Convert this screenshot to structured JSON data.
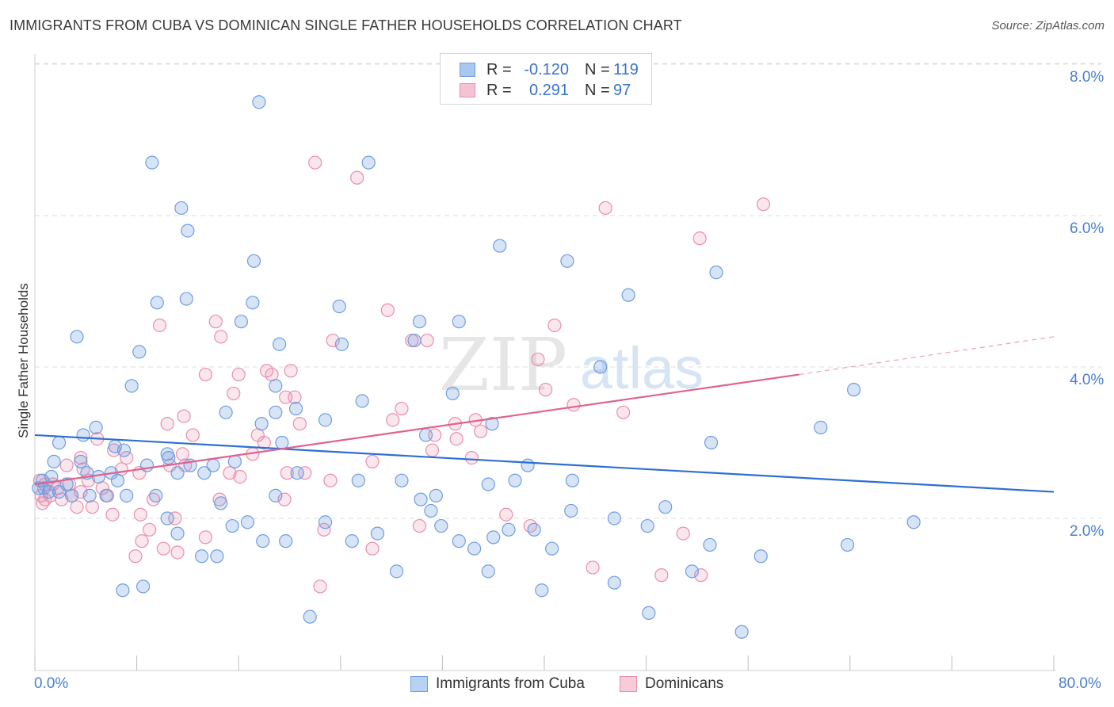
{
  "title": "IMMIGRANTS FROM CUBA VS DOMINICAN SINGLE FATHER HOUSEHOLDS CORRELATION CHART",
  "source": "Source: ZipAtlas.com",
  "watermark": {
    "zip": "ZIP",
    "atlas": "atlas"
  },
  "legend_top": {
    "r_label": "R =",
    "n_label": "N =",
    "rows": [
      {
        "r": "-0.120",
        "n": "119",
        "color": "#a9c8f0",
        "border": "#6f9ee0"
      },
      {
        "r": "0.291",
        "n": "97",
        "color": "#f6c1d2",
        "border": "#e98fac"
      }
    ]
  },
  "legend_bottom": [
    {
      "label": "Immigrants from Cuba",
      "color": "#b8d2f3",
      "border": "#6f9ee0"
    },
    {
      "label": "Dominicans",
      "color": "#f8cbd9",
      "border": "#e98fac"
    }
  ],
  "axes": {
    "y_title": "Single Father Households",
    "x_min_label": "0.0%",
    "x_max_label": "80.0%",
    "y_ticks": [
      "2.0%",
      "4.0%",
      "6.0%",
      "8.0%"
    ]
  },
  "colors": {
    "blue_point": "#6f9ee0",
    "blue_fill": "rgba(111,158,224,0.28)",
    "blue_line": "#2f6fd1",
    "pink_point": "#e98fac",
    "pink_fill": "rgba(233,143,172,0.22)",
    "pink_line": "#e0628e",
    "grid": "#dddddd",
    "tick_label": "#4a7fcf"
  },
  "chart_data": {
    "type": "scatter",
    "title": "IMMIGRANTS FROM CUBA VS DOMINICAN SINGLE FATHER HOUSEHOLDS CORRELATION CHART",
    "xlabel": "",
    "ylabel": "Single Father Households",
    "xlim": [
      0,
      80
    ],
    "ylim": [
      0,
      8.3
    ],
    "x_unit": "%",
    "y_unit": "%",
    "grid": true,
    "legend_position": "top-center",
    "series": [
      {
        "name": "Immigrants from Cuba",
        "R": -0.12,
        "N": 119,
        "trend": {
          "x": [
            0,
            80
          ],
          "y": [
            3.1,
            2.35
          ]
        },
        "points": [
          [
            17.6,
            7.5
          ],
          [
            9.2,
            6.7
          ],
          [
            26.2,
            6.7
          ],
          [
            11.5,
            6.1
          ],
          [
            12,
            5.8
          ],
          [
            36.5,
            5.6
          ],
          [
            17.2,
            5.4
          ],
          [
            41.8,
            5.4
          ],
          [
            53.5,
            5.25
          ],
          [
            9.6,
            4.85
          ],
          [
            11.9,
            4.9
          ],
          [
            17.1,
            4.85
          ],
          [
            23.9,
            4.8
          ],
          [
            46.6,
            4.95
          ],
          [
            16.2,
            4.6
          ],
          [
            30.2,
            4.6
          ],
          [
            33.3,
            4.6
          ],
          [
            3.3,
            4.4
          ],
          [
            8.2,
            4.2
          ],
          [
            19.2,
            4.3
          ],
          [
            24.1,
            4.3
          ],
          [
            29.8,
            4.35
          ],
          [
            44.4,
            4.0
          ],
          [
            7.6,
            3.75
          ],
          [
            18.9,
            3.75
          ],
          [
            32.8,
            3.65
          ],
          [
            25.7,
            3.55
          ],
          [
            18.9,
            3.4
          ],
          [
            15,
            3.4
          ],
          [
            20.5,
            3.45
          ],
          [
            22.8,
            3.3
          ],
          [
            35.9,
            3.25
          ],
          [
            61.7,
            3.2
          ],
          [
            64.3,
            3.7
          ],
          [
            4.8,
            3.2
          ],
          [
            3.8,
            3.1
          ],
          [
            17.8,
            3.25
          ],
          [
            30.7,
            3.1
          ],
          [
            1.9,
            3.0
          ],
          [
            6.3,
            2.95
          ],
          [
            19.4,
            3.0
          ],
          [
            7,
            2.9
          ],
          [
            10.4,
            2.85
          ],
          [
            53.1,
            3.0
          ],
          [
            15.7,
            2.75
          ],
          [
            11.2,
            2.6
          ],
          [
            12.2,
            2.7
          ],
          [
            38.7,
            2.7
          ],
          [
            1.5,
            2.75
          ],
          [
            3.6,
            2.75
          ],
          [
            8.8,
            2.7
          ],
          [
            10.5,
            2.8
          ],
          [
            13.3,
            2.6
          ],
          [
            14,
            2.7
          ],
          [
            20.6,
            2.6
          ],
          [
            0.6,
            2.5
          ],
          [
            1.3,
            2.55
          ],
          [
            2.5,
            2.45
          ],
          [
            4.1,
            2.6
          ],
          [
            5,
            2.55
          ],
          [
            6,
            2.6
          ],
          [
            6.5,
            2.5
          ],
          [
            0.3,
            2.4
          ],
          [
            0.7,
            2.4
          ],
          [
            1.1,
            2.35
          ],
          [
            1.9,
            2.35
          ],
          [
            2.9,
            2.3
          ],
          [
            4.3,
            2.3
          ],
          [
            5.6,
            2.3
          ],
          [
            7.2,
            2.3
          ],
          [
            9.5,
            2.3
          ],
          [
            14.6,
            2.2
          ],
          [
            18.9,
            2.3
          ],
          [
            25.4,
            2.5
          ],
          [
            28.8,
            2.5
          ],
          [
            30.3,
            2.25
          ],
          [
            31.5,
            2.3
          ],
          [
            31.1,
            2.1
          ],
          [
            35.6,
            2.45
          ],
          [
            42.2,
            2.5
          ],
          [
            37.7,
            2.5
          ],
          [
            42.1,
            2.1
          ],
          [
            49.5,
            2.15
          ],
          [
            10.4,
            2.0
          ],
          [
            16.7,
            1.95
          ],
          [
            15.5,
            1.9
          ],
          [
            22.8,
            1.95
          ],
          [
            31.9,
            1.9
          ],
          [
            37.2,
            1.85
          ],
          [
            39.2,
            1.85
          ],
          [
            48.1,
            1.9
          ],
          [
            69,
            1.95
          ],
          [
            11.2,
            1.8
          ],
          [
            26.9,
            1.8
          ],
          [
            33.3,
            1.7
          ],
          [
            36,
            1.75
          ],
          [
            45.5,
            2.0
          ],
          [
            53,
            1.65
          ],
          [
            63.8,
            1.65
          ],
          [
            17.9,
            1.7
          ],
          [
            19.7,
            1.7
          ],
          [
            24.9,
            1.7
          ],
          [
            34.5,
            1.6
          ],
          [
            40.6,
            1.6
          ],
          [
            13.1,
            1.5
          ],
          [
            14.3,
            1.5
          ],
          [
            28.4,
            1.3
          ],
          [
            35.6,
            1.3
          ],
          [
            51.6,
            1.3
          ],
          [
            57,
            1.5
          ],
          [
            6.9,
            1.05
          ],
          [
            8.5,
            1.1
          ],
          [
            39.8,
            1.05
          ],
          [
            45.5,
            1.15
          ],
          [
            48.2,
            0.75
          ],
          [
            21.6,
            0.7
          ],
          [
            55.5,
            0.5
          ]
        ]
      },
      {
        "name": "Dominicans",
        "R": 0.291,
        "N": 97,
        "trend": {
          "x": [
            0,
            60
          ],
          "y": [
            2.45,
            3.9
          ]
        },
        "trend_dashed": {
          "x": [
            60,
            80
          ],
          "y": [
            3.9,
            4.4
          ]
        },
        "points": [
          [
            22,
            6.7
          ],
          [
            25.3,
            6.5
          ],
          [
            44.8,
            6.1
          ],
          [
            57.2,
            6.15
          ],
          [
            52.2,
            5.7
          ],
          [
            27.7,
            4.75
          ],
          [
            14.2,
            4.6
          ],
          [
            40.8,
            4.55
          ],
          [
            9.8,
            4.55
          ],
          [
            14.6,
            4.4
          ],
          [
            30.8,
            4.35
          ],
          [
            23.4,
            4.35
          ],
          [
            29.6,
            4.35
          ],
          [
            39.5,
            4.1
          ],
          [
            20.1,
            3.95
          ],
          [
            16,
            3.9
          ],
          [
            18.6,
            3.9
          ],
          [
            18.2,
            3.95
          ],
          [
            13.4,
            3.9
          ],
          [
            40.1,
            3.7
          ],
          [
            15.6,
            3.65
          ],
          [
            19.7,
            3.6
          ],
          [
            20.4,
            3.6
          ],
          [
            42.3,
            3.5
          ],
          [
            28.8,
            3.45
          ],
          [
            46.2,
            3.4
          ],
          [
            11.7,
            3.35
          ],
          [
            10.4,
            3.25
          ],
          [
            20.8,
            3.25
          ],
          [
            28.1,
            3.3
          ],
          [
            33,
            3.25
          ],
          [
            34.6,
            3.3
          ],
          [
            31.4,
            3.1
          ],
          [
            35,
            3.15
          ],
          [
            12.4,
            3.1
          ],
          [
            17.5,
            3.1
          ],
          [
            4.9,
            3.05
          ],
          [
            18,
            3.0
          ],
          [
            33.1,
            3.05
          ],
          [
            31.2,
            2.9
          ],
          [
            6.2,
            2.9
          ],
          [
            11.6,
            2.85
          ],
          [
            7.2,
            2.8
          ],
          [
            11.8,
            2.7
          ],
          [
            3.6,
            2.8
          ],
          [
            17.1,
            2.85
          ],
          [
            34.3,
            2.8
          ],
          [
            2.5,
            2.7
          ],
          [
            3.8,
            2.65
          ],
          [
            6.8,
            2.65
          ],
          [
            8.2,
            2.6
          ],
          [
            10.6,
            2.7
          ],
          [
            15.3,
            2.6
          ],
          [
            16.1,
            2.55
          ],
          [
            19.8,
            2.6
          ],
          [
            26.5,
            2.75
          ],
          [
            21.2,
            2.6
          ],
          [
            23.2,
            2.5
          ],
          [
            4.2,
            2.5
          ],
          [
            0.4,
            2.5
          ],
          [
            0.8,
            2.45
          ],
          [
            1.4,
            2.45
          ],
          [
            1.8,
            2.4
          ],
          [
            2.7,
            2.45
          ],
          [
            5.3,
            2.4
          ],
          [
            5.7,
            2.3
          ],
          [
            3.6,
            2.35
          ],
          [
            1.2,
            2.3
          ],
          [
            0.5,
            2.3
          ],
          [
            0.8,
            2.25
          ],
          [
            2.1,
            2.25
          ],
          [
            2.9,
            2.3
          ],
          [
            0.6,
            2.2
          ],
          [
            3.3,
            2.15
          ],
          [
            4.5,
            2.15
          ],
          [
            9.3,
            2.25
          ],
          [
            14.5,
            2.25
          ],
          [
            19.6,
            2.25
          ],
          [
            6.1,
            2.05
          ],
          [
            8.3,
            2.05
          ],
          [
            11,
            2.0
          ],
          [
            22.7,
            1.85
          ],
          [
            30.2,
            1.9
          ],
          [
            38.9,
            1.9
          ],
          [
            37,
            2.05
          ],
          [
            9,
            1.85
          ],
          [
            13.4,
            1.75
          ],
          [
            8.4,
            1.7
          ],
          [
            26.5,
            1.6
          ],
          [
            50.9,
            1.8
          ],
          [
            10.1,
            1.6
          ],
          [
            11.2,
            1.55
          ],
          [
            7.9,
            1.5
          ],
          [
            43.8,
            1.35
          ],
          [
            49.2,
            1.25
          ],
          [
            52.3,
            1.25
          ],
          [
            22.4,
            1.1
          ]
        ]
      }
    ]
  }
}
